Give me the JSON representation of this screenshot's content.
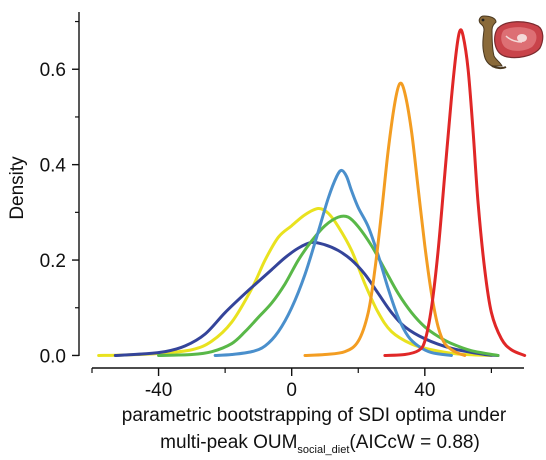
{
  "chart_data": {
    "type": "line",
    "title": "",
    "ylabel": "Density",
    "xlabel_line1": "parametric bootstrapping of SDI optima under",
    "xlabel_line2_prefix": "multi-peak OUM",
    "xlabel_line2_sub": "social_diet",
    "xlabel_line2_suffix": "(AICcW = 0.88)",
    "xlim": [
      -60,
      71
    ],
    "ylim": [
      -0.02,
      0.72
    ],
    "x_ticks": [
      -40,
      0,
      40
    ],
    "x_tick_labels": [
      "-40",
      "0",
      "40"
    ],
    "x_minor_ticks": [
      -60,
      -20,
      20,
      60
    ],
    "y_ticks": [
      0.0,
      0.2,
      0.4,
      0.6
    ],
    "y_tick_labels": [
      "0.0",
      "0.2",
      "0.4",
      "0.6"
    ],
    "y_minor_ticks": [
      0.1,
      0.3,
      0.5,
      0.7
    ],
    "grid": false,
    "legend": "none",
    "icons": [
      "otter-icon",
      "steak-icon"
    ],
    "series": [
      {
        "color": "#e9e21f",
        "points": [
          [
            -58,
            0.0
          ],
          [
            -50,
            0.001
          ],
          [
            -40,
            0.004
          ],
          [
            -30,
            0.012
          ],
          [
            -24,
            0.03
          ],
          [
            -18,
            0.07
          ],
          [
            -12,
            0.14
          ],
          [
            -8,
            0.2
          ],
          [
            -4,
            0.248
          ],
          [
            0,
            0.272
          ],
          [
            4,
            0.295
          ],
          [
            8,
            0.308
          ],
          [
            11,
            0.298
          ],
          [
            14,
            0.27
          ],
          [
            18,
            0.22
          ],
          [
            22,
            0.15
          ],
          [
            26,
            0.09
          ],
          [
            30,
            0.05
          ],
          [
            36,
            0.024
          ],
          [
            42,
            0.012
          ],
          [
            50,
            0.003
          ],
          [
            60,
            0.0
          ]
        ]
      },
      {
        "color": "#34449a",
        "points": [
          [
            -53,
            0.0
          ],
          [
            -45,
            0.003
          ],
          [
            -38,
            0.008
          ],
          [
            -32,
            0.02
          ],
          [
            -26,
            0.045
          ],
          [
            -20,
            0.09
          ],
          [
            -14,
            0.13
          ],
          [
            -10,
            0.155
          ],
          [
            -6,
            0.18
          ],
          [
            -2,
            0.205
          ],
          [
            2,
            0.225
          ],
          [
            6,
            0.237
          ],
          [
            10,
            0.232
          ],
          [
            14,
            0.22
          ],
          [
            18,
            0.2
          ],
          [
            22,
            0.17
          ],
          [
            26,
            0.13
          ],
          [
            30,
            0.09
          ],
          [
            34,
            0.06
          ],
          [
            40,
            0.035
          ],
          [
            48,
            0.015
          ],
          [
            58,
            0.002
          ],
          [
            62,
            0.0
          ]
        ]
      },
      {
        "color": "#59b848",
        "points": [
          [
            -40,
            0.0
          ],
          [
            -30,
            0.002
          ],
          [
            -24,
            0.008
          ],
          [
            -18,
            0.025
          ],
          [
            -14,
            0.05
          ],
          [
            -10,
            0.08
          ],
          [
            -6,
            0.11
          ],
          [
            -2,
            0.15
          ],
          [
            2,
            0.2
          ],
          [
            6,
            0.24
          ],
          [
            10,
            0.272
          ],
          [
            14,
            0.29
          ],
          [
            17,
            0.29
          ],
          [
            20,
            0.27
          ],
          [
            24,
            0.23
          ],
          [
            28,
            0.18
          ],
          [
            32,
            0.13
          ],
          [
            36,
            0.09
          ],
          [
            40,
            0.06
          ],
          [
            44,
            0.04
          ],
          [
            48,
            0.025
          ],
          [
            54,
            0.01
          ],
          [
            62,
            0.0
          ]
        ]
      },
      {
        "color": "#4a8fcc",
        "points": [
          [
            -23,
            0.0
          ],
          [
            -18,
            0.002
          ],
          [
            -12,
            0.008
          ],
          [
            -8,
            0.02
          ],
          [
            -4,
            0.05
          ],
          [
            0,
            0.1
          ],
          [
            4,
            0.17
          ],
          [
            8,
            0.26
          ],
          [
            11,
            0.33
          ],
          [
            13.5,
            0.375
          ],
          [
            15,
            0.388
          ],
          [
            16.5,
            0.375
          ],
          [
            18,
            0.345
          ],
          [
            20,
            0.31
          ],
          [
            23,
            0.27
          ],
          [
            26,
            0.21
          ],
          [
            29,
            0.14
          ],
          [
            32,
            0.08
          ],
          [
            35,
            0.04
          ],
          [
            38,
            0.02
          ],
          [
            42,
            0.006
          ],
          [
            48,
            0.0
          ]
        ]
      },
      {
        "color": "#f39d22",
        "points": [
          [
            4,
            0.0
          ],
          [
            10,
            0.002
          ],
          [
            16,
            0.008
          ],
          [
            20,
            0.03
          ],
          [
            23,
            0.09
          ],
          [
            25,
            0.18
          ],
          [
            27,
            0.3
          ],
          [
            29,
            0.43
          ],
          [
            31,
            0.53
          ],
          [
            32.5,
            0.57
          ],
          [
            34,
            0.55
          ],
          [
            36,
            0.47
          ],
          [
            38,
            0.35
          ],
          [
            40,
            0.23
          ],
          [
            42,
            0.13
          ],
          [
            44,
            0.06
          ],
          [
            46,
            0.025
          ],
          [
            49,
            0.008
          ],
          [
            52,
            0.0
          ]
        ]
      },
      {
        "color": "#e02727",
        "points": [
          [
            28,
            0.0
          ],
          [
            34,
            0.002
          ],
          [
            38,
            0.01
          ],
          [
            40,
            0.03
          ],
          [
            42,
            0.1
          ],
          [
            44,
            0.22
          ],
          [
            46,
            0.38
          ],
          [
            48,
            0.54
          ],
          [
            49.5,
            0.64
          ],
          [
            50.5,
            0.68
          ],
          [
            51.5,
            0.67
          ],
          [
            53,
            0.6
          ],
          [
            54.5,
            0.47
          ],
          [
            56,
            0.32
          ],
          [
            58,
            0.18
          ],
          [
            60,
            0.09
          ],
          [
            63,
            0.035
          ],
          [
            66,
            0.012
          ],
          [
            70,
            0.0
          ]
        ]
      }
    ]
  }
}
